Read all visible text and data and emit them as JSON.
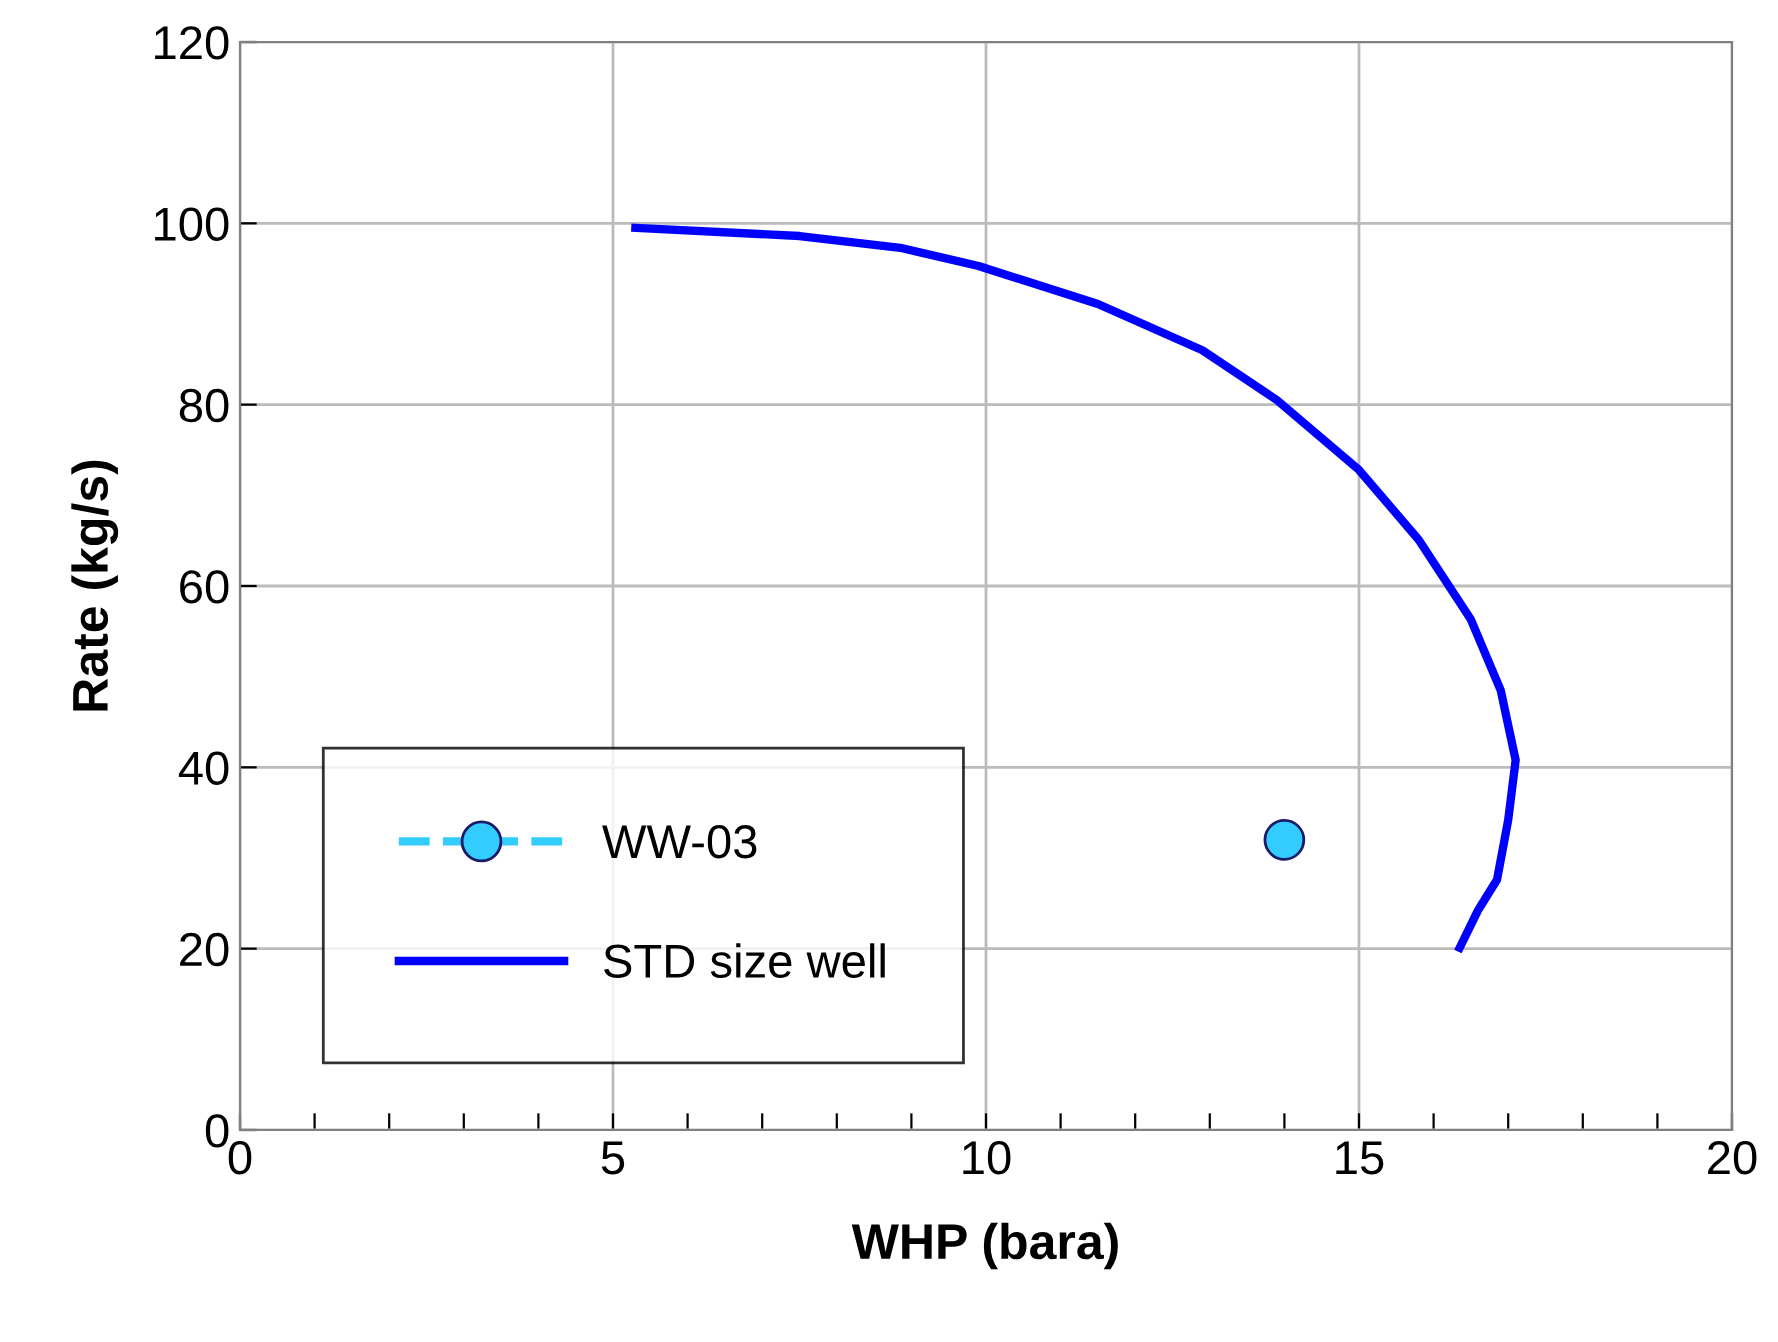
{
  "chart_data": {
    "type": "line",
    "xlabel": "WHP (bara)",
    "ylabel": "Rate (kg/s)",
    "xlim": [
      0,
      20
    ],
    "ylim": [
      0,
      120
    ],
    "xticks": [
      0,
      {
        "value": 1,
        "label": null
      },
      {
        "value": 2,
        "label": null
      },
      {
        "value": 3,
        "label": null
      },
      {
        "value": 4,
        "label": null
      },
      5,
      {
        "value": 6,
        "label": null
      },
      {
        "value": 7,
        "label": null
      },
      {
        "value": 8,
        "label": null
      },
      {
        "value": 9,
        "label": null
      },
      10,
      {
        "value": 11,
        "label": null
      },
      {
        "value": 12,
        "label": null
      },
      {
        "value": 13,
        "label": null
      },
      {
        "value": 14,
        "label": null
      },
      15,
      {
        "value": 16,
        "label": null
      },
      {
        "value": 17,
        "label": null
      },
      {
        "value": 18,
        "label": null
      },
      {
        "value": 19,
        "label": null
      },
      20
    ],
    "yticks": [
      0,
      20,
      40,
      60,
      80,
      100,
      120
    ],
    "grid": true,
    "legend": "bottom left",
    "series": [
      {
        "name": "WW-03",
        "color": "#33ccff",
        "marker": "circle",
        "line_style": "dashed",
        "x": [
          14.0
        ],
        "values": [
          32
        ]
      },
      {
        "name": "STD size well",
        "color": "#0000ff",
        "marker": "none",
        "line_style": "solid",
        "x": [
          5.3,
          7.5,
          8.85,
          9.9,
          11.5,
          12.9,
          13.9,
          15.0,
          15.8,
          16.5,
          16.9,
          17.1,
          17.0,
          16.85,
          16.6,
          16.35
        ],
        "values": [
          99.5,
          98.6,
          97.3,
          95.3,
          91.1,
          86.0,
          80.5,
          72.8,
          65.1,
          56.3,
          48.5,
          40.8,
          34.2,
          27.6,
          24.3,
          20.1
        ]
      }
    ]
  }
}
